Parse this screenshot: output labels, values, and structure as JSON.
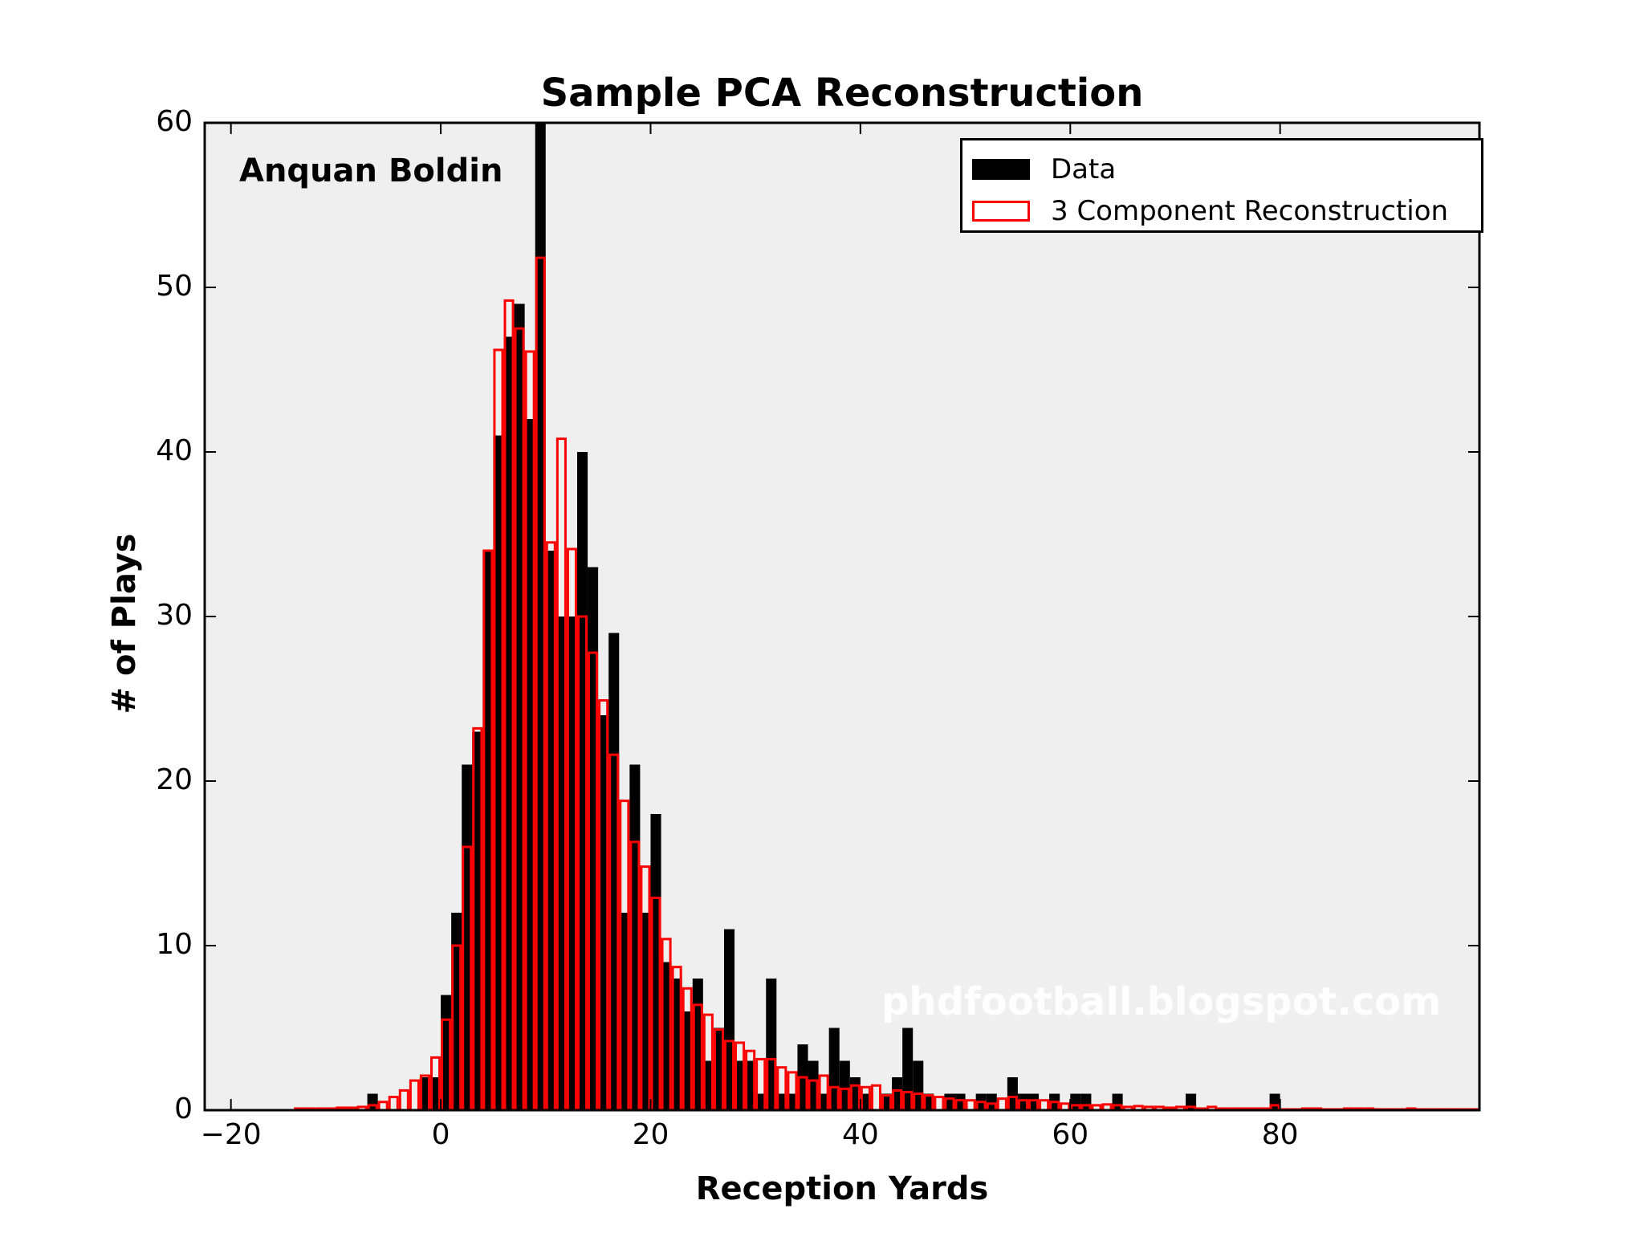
{
  "chart": {
    "title": "Sample PCA Reconstruction",
    "xlabel": "Reception Yards",
    "ylabel": "# of Plays",
    "annotation": "Anquan Boldin",
    "watermark": "phdfootball.blogspot.com",
    "legend": {
      "data_label": "Data",
      "recon_label": "3 Component Reconstruction"
    },
    "colors": {
      "data": "#000000",
      "reconstruction": "#ff0000",
      "plot_bg": "#efefef"
    }
  },
  "chart_data": {
    "type": "bar",
    "title": "Sample PCA Reconstruction",
    "xlabel": "Reception Yards",
    "ylabel": "# of Plays",
    "xlim": [
      -22.5,
      99
    ],
    "ylim": [
      0,
      60
    ],
    "xticks": [
      -20,
      0,
      20,
      40,
      60,
      80
    ],
    "yticks": [
      0,
      10,
      20,
      30,
      40,
      50,
      60
    ],
    "bin_width": 1,
    "grid": false,
    "legend_position": "upper right",
    "annotation": "Anquan Boldin",
    "x": [
      -14,
      -13,
      -12,
      -11,
      -10,
      -9,
      -8,
      -7,
      -6,
      -5,
      -4,
      -3,
      -2,
      -1,
      0,
      1,
      2,
      3,
      4,
      5,
      6,
      7,
      8,
      9,
      10,
      11,
      12,
      13,
      14,
      15,
      16,
      17,
      18,
      19,
      20,
      21,
      22,
      23,
      24,
      25,
      26,
      27,
      28,
      29,
      30,
      31,
      32,
      33,
      34,
      35,
      36,
      37,
      38,
      39,
      40,
      41,
      42,
      43,
      44,
      45,
      46,
      47,
      48,
      49,
      50,
      51,
      52,
      53,
      54,
      55,
      56,
      57,
      58,
      59,
      60,
      61,
      62,
      63,
      64,
      65,
      66,
      67,
      68,
      69,
      70,
      71,
      72,
      73,
      74,
      75,
      76,
      77,
      78,
      79,
      80,
      81,
      82,
      83,
      84,
      85,
      86,
      87,
      88,
      89,
      90,
      91,
      92,
      93,
      94,
      95,
      96,
      97,
      98
    ],
    "series": [
      {
        "name": "Data",
        "style": "filled",
        "values": [
          0,
          0,
          0,
          0,
          0,
          0,
          0,
          1,
          0,
          0,
          0,
          0,
          2,
          2,
          7,
          12,
          21,
          23,
          34,
          41,
          47,
          49,
          42,
          60,
          34,
          30,
          30,
          40,
          33,
          24,
          29,
          12,
          21,
          12,
          18,
          9,
          8,
          6,
          8,
          3,
          5,
          11,
          3,
          3,
          1,
          8,
          1,
          1,
          4,
          3,
          1,
          5,
          3,
          2,
          1,
          0,
          1,
          2,
          5,
          3,
          1,
          0,
          1,
          1,
          0,
          1,
          1,
          0,
          2,
          1,
          1,
          0,
          1,
          0,
          1,
          1,
          0,
          0,
          1,
          0,
          0,
          0,
          0,
          0,
          0,
          1,
          0,
          0,
          0,
          0,
          0,
          0,
          0,
          1,
          0,
          0,
          0,
          0,
          0,
          0,
          0,
          0,
          0,
          0,
          0,
          0,
          0,
          0,
          0,
          0,
          0,
          0,
          0
        ]
      },
      {
        "name": "3 Component Reconstruction",
        "style": "outline",
        "values": [
          0.1,
          0.1,
          0.1,
          0.1,
          0.15,
          0.15,
          0.2,
          0.3,
          0.5,
          0.8,
          1.2,
          1.8,
          2.1,
          3.2,
          5.5,
          10,
          16,
          23.2,
          34,
          46.2,
          49.2,
          47.5,
          46.1,
          51.8,
          34.5,
          40.8,
          34.1,
          30,
          27.8,
          24.9,
          21.6,
          18.8,
          16.3,
          14.8,
          12.9,
          10.4,
          8.7,
          7.4,
          6.4,
          5.8,
          4.9,
          4.2,
          4.1,
          3.6,
          3.1,
          3.1,
          2.6,
          2.3,
          2.0,
          1.8,
          2.1,
          1.4,
          1.3,
          1.5,
          1.4,
          1.5,
          0.9,
          1.2,
          1.1,
          1.0,
          0.9,
          0.8,
          0.7,
          0.6,
          0.6,
          0.5,
          0.4,
          0.7,
          0.8,
          0.6,
          0.6,
          0.6,
          0.5,
          0.4,
          0.3,
          0.3,
          0.3,
          0.35,
          0.3,
          0.2,
          0.25,
          0.2,
          0.2,
          0.15,
          0.2,
          0.2,
          0.1,
          0.2,
          0.1,
          0.1,
          0.1,
          0.1,
          0.1,
          0.3,
          0.05,
          0.05,
          0.1,
          0.1,
          0.05,
          0.05,
          0.1,
          0.1,
          0.1,
          0.05,
          0.05,
          0.05,
          0.1,
          0.05,
          0.05,
          0.05,
          0.05,
          0.05,
          0.05
        ]
      }
    ]
  }
}
